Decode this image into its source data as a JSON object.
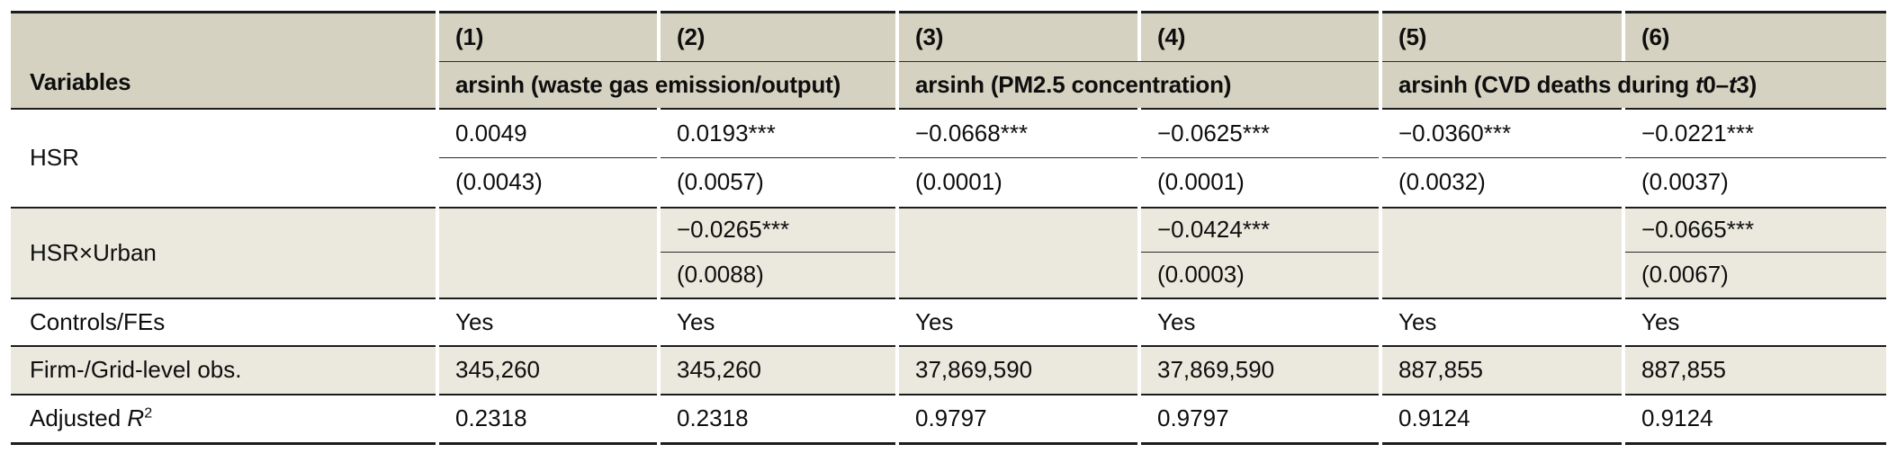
{
  "header": {
    "variables_label": "Variables",
    "column_numbers": [
      "(1)",
      "(2)",
      "(3)",
      "(4)",
      "(5)",
      "(6)"
    ],
    "groups": [
      {
        "label": "arsinh (waste gas emission/output)"
      },
      {
        "label": "arsinh (PM2.5 concentration)"
      },
      {
        "label_segments": [
          {
            "text": "arsinh (CVD deaths during "
          },
          {
            "text": "t",
            "italic": true
          },
          {
            "text": "0–"
          },
          {
            "text": "t",
            "italic": true
          },
          {
            "text": "3)"
          }
        ]
      }
    ]
  },
  "body": {
    "hsr": {
      "label": "HSR",
      "coef": [
        "0.0049",
        "0.0193***",
        "−0.0668***",
        "−0.0625***",
        "−0.0360***",
        "−0.0221***"
      ],
      "se": [
        "(0.0043)",
        "(0.0057)",
        "(0.0001)",
        "(0.0001)",
        "(0.0032)",
        "(0.0037)"
      ]
    },
    "hsr_urban": {
      "label": "HSR×Urban",
      "coef": [
        "",
        "−0.0265***",
        "",
        "−0.0424***",
        "",
        "−0.0665***"
      ],
      "se": [
        "",
        "(0.0088)",
        "",
        "(0.0003)",
        "",
        "(0.0067)"
      ]
    },
    "controls": {
      "label": "Controls/FEs",
      "values": [
        "Yes",
        "Yes",
        "Yes",
        "Yes",
        "Yes",
        "Yes"
      ]
    },
    "obs": {
      "label": "Firm-/Grid-level obs.",
      "values": [
        "345,260",
        "345,260",
        "37,869,590",
        "37,869,590",
        "887,855",
        "887,855"
      ]
    },
    "adj_r2": {
      "label_segments": [
        {
          "text": "Adjusted "
        },
        {
          "text": "R",
          "italic": true
        },
        {
          "text": "2",
          "sup": true
        }
      ],
      "values": [
        "0.2318",
        "0.2318",
        "0.9797",
        "0.9797",
        "0.9124",
        "0.9124"
      ]
    }
  },
  "colors": {
    "header_bg": "#d5d2c1",
    "stripe_bg": "#ebe9de",
    "border": "#1c1c1c"
  }
}
